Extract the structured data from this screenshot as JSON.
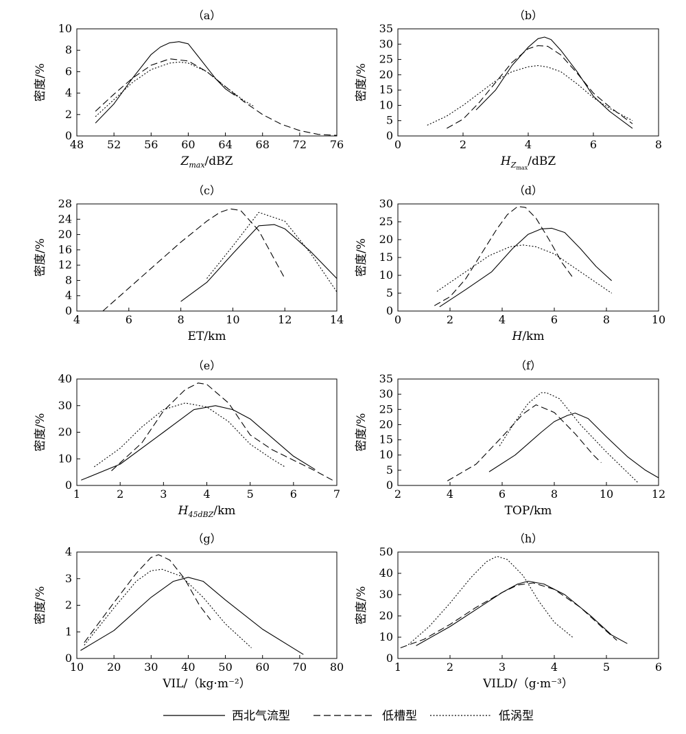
{
  "legend": [
    {
      "label": "西北气流型",
      "dash": "solid"
    },
    {
      "label": "低槽型",
      "dash": "dashed"
    },
    {
      "label": "低涡型",
      "dash": "dotted"
    }
  ],
  "chart_data": [
    {
      "panel": "（a）",
      "type": "line",
      "ylabel": "密度/%",
      "xlabel": {
        "main": "Z",
        "sub": "max",
        "rest": "/dBZ",
        "sub_of_sub": ""
      },
      "xlim": [
        48,
        76
      ],
      "ylim": [
        0,
        10
      ],
      "xticks": [
        48,
        52,
        56,
        60,
        64,
        68,
        72,
        76
      ],
      "yticks": [
        0,
        2,
        4,
        6,
        8,
        10
      ],
      "series": [
        {
          "name": "西北气流型",
          "x": [
            50,
            52,
            54,
            56,
            57,
            58,
            59,
            60,
            61,
            62,
            63,
            64,
            65
          ],
          "y": [
            1.2,
            3,
            5.4,
            7.6,
            8.3,
            8.7,
            8.8,
            8.6,
            7.5,
            6.4,
            5.3,
            4.4,
            3.8
          ]
        },
        {
          "name": "低槽型",
          "x": [
            50,
            52,
            54,
            56,
            58,
            60,
            62,
            64,
            66,
            68,
            70,
            72,
            74,
            76
          ],
          "y": [
            2.3,
            3.9,
            5.4,
            6.6,
            7.2,
            7.0,
            6.0,
            4.6,
            3.2,
            2.0,
            1.1,
            0.5,
            0.15,
            0.05
          ]
        },
        {
          "name": "低涡型",
          "x": [
            50,
            52,
            54,
            56,
            58,
            59,
            60,
            62,
            64,
            66,
            67
          ],
          "y": [
            1.8,
            3.4,
            5.0,
            6.2,
            6.8,
            6.9,
            6.8,
            6.0,
            4.6,
            3.3,
            2.8
          ]
        }
      ]
    },
    {
      "panel": "（b）",
      "type": "line",
      "ylabel": "密度/%",
      "xlabel": {
        "main": "H",
        "sub": "Z",
        "sub_of_sub": "max",
        "rest": "/dBZ"
      },
      "xlim": [
        0,
        8
      ],
      "ylim": [
        0,
        35
      ],
      "xticks": [
        0,
        2,
        4,
        6,
        8
      ],
      "yticks": [
        0,
        5,
        10,
        15,
        20,
        25,
        30,
        35
      ],
      "series": [
        {
          "name": "西北气流型",
          "x": [
            2.4,
            3.0,
            3.5,
            4.0,
            4.3,
            4.5,
            4.7,
            5.0,
            5.5,
            6.0,
            6.5,
            7.2
          ],
          "y": [
            8.5,
            15,
            23,
            29,
            31.8,
            32.3,
            31.5,
            28,
            21,
            13,
            8,
            2.5
          ]
        },
        {
          "name": "低槽型",
          "x": [
            1.5,
            2.0,
            2.5,
            3.0,
            3.5,
            4.0,
            4.3,
            4.6,
            5.0,
            5.5,
            6.0,
            6.5,
            7.2
          ],
          "y": [
            2.5,
            5.5,
            11,
            17.5,
            24,
            28.5,
            29.5,
            29.3,
            26.5,
            20.5,
            14,
            9.5,
            4
          ]
        },
        {
          "name": "低涡型",
          "x": [
            0.9,
            1.5,
            2.0,
            2.5,
            3.0,
            3.5,
            4.0,
            4.3,
            4.6,
            5.0,
            5.5,
            6.0,
            6.5,
            7.2
          ],
          "y": [
            3.5,
            6.5,
            10,
            14,
            18,
            21,
            22.6,
            23,
            22.5,
            21,
            17,
            12.5,
            9,
            5
          ]
        }
      ]
    },
    {
      "panel": "（c）",
      "type": "line",
      "ylabel": "密度/%",
      "xlabel": {
        "main": "",
        "sub": "",
        "sub_of_sub": "",
        "rest": "ET/km"
      },
      "xlim": [
        4,
        14
      ],
      "ylim": [
        0,
        28
      ],
      "xticks": [
        4,
        6,
        8,
        10,
        12,
        14
      ],
      "yticks": [
        0,
        4,
        8,
        12,
        16,
        20,
        24,
        28
      ],
      "series": [
        {
          "name": "西北气流型",
          "x": [
            8,
            9,
            10,
            11,
            11.6,
            12,
            13,
            14
          ],
          "y": [
            2.5,
            7.5,
            15,
            22.3,
            22.6,
            21.5,
            15.5,
            8.5
          ]
        },
        {
          "name": "低槽型",
          "x": [
            5,
            6,
            7,
            8,
            9,
            9.5,
            9.9,
            10.3,
            11,
            12
          ],
          "y": [
            0,
            6,
            12,
            18,
            23.5,
            25.8,
            26.7,
            26.3,
            21,
            8.5
          ]
        },
        {
          "name": "低涡型",
          "x": [
            9,
            10,
            11,
            12,
            13,
            14
          ],
          "y": [
            8.5,
            17,
            25.8,
            23.5,
            15,
            5
          ]
        }
      ]
    },
    {
      "panel": "（d）",
      "type": "line",
      "ylabel": "密度/%",
      "xlabel": {
        "main": "H",
        "sub": "",
        "sub_of_sub": "",
        "rest": "/km"
      },
      "xlim": [
        0,
        10
      ],
      "ylim": [
        0,
        30
      ],
      "xticks": [
        0,
        2,
        4,
        6,
        8,
        10
      ],
      "yticks": [
        0,
        5,
        10,
        15,
        20,
        25,
        30
      ],
      "series": [
        {
          "name": "西北气流型",
          "x": [
            1.6,
            2.6,
            3.6,
            4.4,
            5.0,
            5.5,
            5.9,
            6.4,
            7.0,
            7.6,
            8.2
          ],
          "y": [
            1.2,
            6,
            11,
            17.5,
            21.5,
            23,
            23.2,
            22,
            17.5,
            12.5,
            8.5
          ]
        },
        {
          "name": "低槽型",
          "x": [
            1.4,
            2.0,
            2.6,
            3.2,
            3.8,
            4.2,
            4.6,
            4.9,
            5.3,
            5.8,
            6.3,
            6.7
          ],
          "y": [
            1.5,
            4,
            9,
            16,
            23,
            27,
            29.3,
            29,
            26,
            20,
            13.5,
            9.5
          ]
        },
        {
          "name": "低涡型",
          "x": [
            1.5,
            2.5,
            3.5,
            4.3,
            4.8,
            5.3,
            6.0,
            7.0,
            8.2
          ],
          "y": [
            5.5,
            10.5,
            15.5,
            18,
            18.5,
            18,
            16,
            11,
            5
          ]
        }
      ]
    },
    {
      "panel": "（e）",
      "type": "line",
      "ylabel": "密度/%",
      "xlabel": {
        "main": "H",
        "sub": "45dBZ",
        "sub_of_sub": "",
        "rest": "/km"
      },
      "xlim": [
        1,
        7
      ],
      "ylim": [
        0,
        40
      ],
      "xticks": [
        1,
        2,
        3,
        4,
        5,
        6,
        7
      ],
      "yticks": [
        0,
        10,
        20,
        30,
        40
      ],
      "series": [
        {
          "name": "西北气流型",
          "x": [
            1.1,
            2.0,
            3.0,
            3.7,
            4.2,
            4.6,
            5.0,
            5.5,
            6.0,
            6.5
          ],
          "y": [
            2,
            8,
            20,
            28.5,
            30,
            28.5,
            25,
            18,
            11,
            6
          ]
        },
        {
          "name": "低槽型",
          "x": [
            1.8,
            2.5,
            3.0,
            3.5,
            3.8,
            4.0,
            4.5,
            5.0,
            5.5,
            6.0,
            6.5,
            6.9
          ],
          "y": [
            5.5,
            16,
            28,
            36,
            38.5,
            38,
            31,
            19,
            13.5,
            9.5,
            5.5,
            2
          ]
        },
        {
          "name": "低涡型",
          "x": [
            1.4,
            2.0,
            2.5,
            3.0,
            3.5,
            4.0,
            4.5,
            5.0,
            5.5,
            5.8
          ],
          "y": [
            7,
            14,
            22,
            28.5,
            31,
            29.5,
            24,
            15.5,
            10,
            7
          ]
        }
      ]
    },
    {
      "panel": "（f）",
      "type": "line",
      "ylabel": "密度/%",
      "xlabel": {
        "main": "",
        "sub": "",
        "sub_of_sub": "",
        "rest": "TOP/km"
      },
      "xlim": [
        2,
        12
      ],
      "ylim": [
        0,
        35
      ],
      "xticks": [
        2,
        4,
        6,
        8,
        10,
        12
      ],
      "yticks": [
        0,
        5,
        10,
        15,
        20,
        25,
        30,
        35
      ],
      "series": [
        {
          "name": "西北气流型",
          "x": [
            5.5,
            6.5,
            7.5,
            8.0,
            8.5,
            8.8,
            9.3,
            10.0,
            10.8,
            11.5,
            12
          ],
          "y": [
            4.5,
            10,
            17.5,
            21,
            23,
            23.8,
            22,
            16,
            9.5,
            5,
            2.5
          ]
        },
        {
          "name": "低槽型",
          "x": [
            3.9,
            5.0,
            6.0,
            6.8,
            7.3,
            8.0,
            8.8,
            9.5,
            9.8
          ],
          "y": [
            1.5,
            7,
            16,
            23.5,
            26.5,
            24,
            17,
            10,
            7.5
          ]
        },
        {
          "name": "低涡型",
          "x": [
            5.9,
            6.5,
            7.0,
            7.5,
            7.7,
            8.2,
            9.0,
            10.0,
            11.2
          ],
          "y": [
            13,
            21,
            27,
            30.5,
            30.5,
            28.5,
            20,
            11,
            1
          ]
        }
      ]
    },
    {
      "panel": "（g）",
      "type": "line",
      "ylabel": "密度/%",
      "xlabel": {
        "main": "",
        "sub": "",
        "sub_of_sub": "",
        "rest": "VIL/（kg·m⁻²）"
      },
      "xlim": [
        10,
        80
      ],
      "ylim": [
        0,
        4
      ],
      "xticks": [
        10,
        20,
        30,
        40,
        50,
        60,
        70,
        80
      ],
      "yticks": [
        0,
        1,
        2,
        3,
        4
      ],
      "series": [
        {
          "name": "西北气流型",
          "x": [
            11,
            20,
            30,
            36,
            40,
            44,
            50,
            60,
            71
          ],
          "y": [
            0.3,
            1.05,
            2.3,
            2.9,
            3.05,
            2.9,
            2.2,
            1.1,
            0.15
          ]
        },
        {
          "name": "低槽型",
          "x": [
            12,
            20,
            26,
            30,
            32,
            35,
            39,
            43,
            46
          ],
          "y": [
            0.6,
            2.1,
            3.2,
            3.8,
            3.9,
            3.7,
            3.0,
            2.0,
            1.45
          ]
        },
        {
          "name": "低涡型",
          "x": [
            12,
            20,
            26,
            30,
            33,
            38,
            44,
            50,
            57
          ],
          "y": [
            0.5,
            1.9,
            2.9,
            3.3,
            3.35,
            3.1,
            2.3,
            1.3,
            0.4
          ]
        }
      ]
    },
    {
      "panel": "（h）",
      "type": "line",
      "ylabel": "密度/%",
      "xlabel": {
        "main": "",
        "sub": "",
        "sub_of_sub": "",
        "rest": "VILD/（g·m⁻³）"
      },
      "xlim": [
        1,
        6
      ],
      "ylim": [
        0,
        50
      ],
      "xticks": [
        1,
        2,
        3,
        4,
        5,
        6
      ],
      "yticks": [
        0,
        10,
        20,
        30,
        40,
        50
      ],
      "series": [
        {
          "name": "西北气流型",
          "x": [
            1.35,
            2.0,
            2.5,
            3.0,
            3.3,
            3.5,
            3.8,
            4.2,
            4.7,
            5.1,
            5.4
          ],
          "y": [
            6,
            15,
            23,
            31,
            35,
            36.3,
            35,
            30,
            20,
            11,
            7
          ]
        },
        {
          "name": "低槽型",
          "x": [
            1.05,
            1.5,
            2.0,
            2.5,
            3.0,
            3.3,
            3.6,
            4.0,
            4.5,
            4.9,
            5.2
          ],
          "y": [
            5,
            9,
            16,
            24,
            31,
            34.5,
            35.5,
            32.5,
            24,
            15,
            8.5
          ]
        },
        {
          "name": "低涡型",
          "x": [
            1.2,
            1.6,
            2.0,
            2.4,
            2.7,
            2.9,
            3.1,
            3.4,
            3.7,
            4.0,
            4.35
          ],
          "y": [
            6.5,
            15,
            26,
            38,
            45.5,
            48,
            46.5,
            39,
            27,
            17,
            10
          ]
        }
      ]
    }
  ]
}
